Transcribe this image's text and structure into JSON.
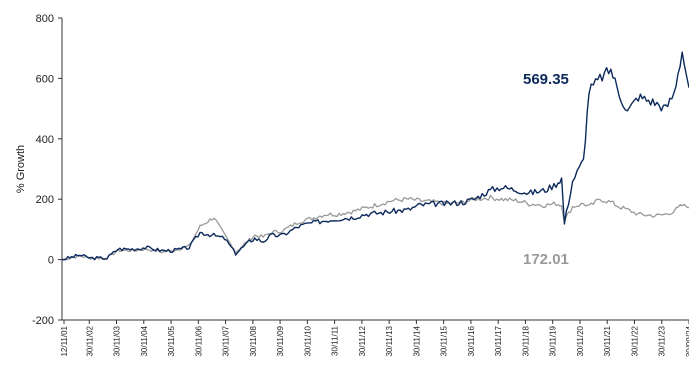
{
  "chart_data": {
    "type": "line",
    "title": "",
    "xlabel": "",
    "ylabel": "% Growth",
    "ylim": [
      -200,
      800
    ],
    "yticks": [
      -200,
      0,
      200,
      400,
      600,
      800
    ],
    "xticks": [
      "12/11/01",
      "30/11/02",
      "30/11/03",
      "30/11/04",
      "30/11/05",
      "30/11/06",
      "30/11/07",
      "30/11/08",
      "30/11/09",
      "30/11/10",
      "30/11/11",
      "30/11/12",
      "30/11/13",
      "30/11/14",
      "30/11/15",
      "30/11/16",
      "30/11/17",
      "30/11/18",
      "30/11/19",
      "30/11/20",
      "30/11/21",
      "30/11/22",
      "30/11/23",
      "30/09/24"
    ],
    "grid": false,
    "legend": "none",
    "colors": {
      "fund": "#0d2a5c",
      "benchmark": "#999999",
      "background": "#ffffff"
    },
    "x": [
      2001.86,
      2002.5,
      2002.9,
      2003.5,
      2003.9,
      2004.5,
      2004.9,
      2005.5,
      2005.9,
      2006.5,
      2006.9,
      2007.4,
      2007.8,
      2008.2,
      2008.7,
      2008.9,
      2009.2,
      2009.5,
      2009.9,
      2010.5,
      2010.9,
      2011.5,
      2011.9,
      2012.5,
      2012.9,
      2013.5,
      2013.9,
      2014.5,
      2014.9,
      2015.5,
      2015.9,
      2016.5,
      2016.9,
      2017.5,
      2017.9,
      2018.5,
      2018.9,
      2019.5,
      2019.9,
      2020.1,
      2020.2,
      2020.5,
      2020.9,
      2021.1,
      2021.5,
      2021.9,
      2022.2,
      2022.5,
      2022.9,
      2023.5,
      2023.9,
      2024.2,
      2024.5,
      2024.75
    ],
    "series": [
      {
        "values": [
          0,
          15,
          5,
          5,
          35,
          35,
          40,
          30,
          30,
          40,
          90,
          80,
          70,
          20,
          60,
          70,
          60,
          80,
          80,
          110,
          120,
          130,
          135,
          140,
          150,
          155,
          160,
          165,
          180,
          185,
          185,
          190,
          200,
          230,
          240,
          230,
          220,
          230,
          250,
          270,
          120,
          260,
          330,
          560,
          600,
          630,
          550,
          490,
          540,
          520,
          500,
          550,
          690,
          569.35
        ]
      },
      {
        "values": [
          0,
          12,
          5,
          5,
          30,
          30,
          35,
          25,
          30,
          45,
          110,
          140,
          80,
          25,
          65,
          80,
          75,
          90,
          95,
          125,
          135,
          150,
          150,
          160,
          170,
          185,
          195,
          200,
          195,
          190,
          185,
          190,
          200,
          205,
          200,
          195,
          185,
          180,
          185,
          180,
          130,
          175,
          185,
          175,
          200,
          190,
          175,
          165,
          150,
          145,
          150,
          160,
          180,
          172.01
        ]
      }
    ],
    "annotations": [
      "569.35",
      "172.01"
    ]
  }
}
